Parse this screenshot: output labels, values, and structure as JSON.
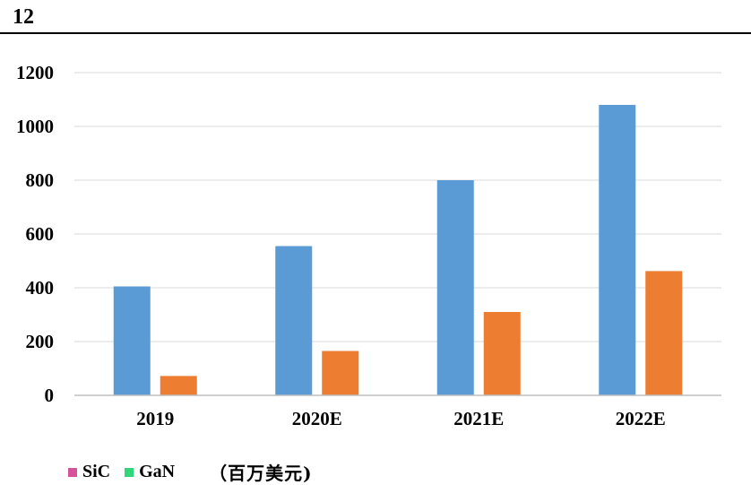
{
  "page": {
    "number": "12"
  },
  "legend": {
    "items": [
      {
        "label": "SiC",
        "color": "#d6529b"
      },
      {
        "label": "GaN",
        "color": "#2fd67a"
      }
    ],
    "unit": "（百万美元)"
  },
  "chart_data": {
    "type": "bar",
    "categories": [
      "2019",
      "2020E",
      "2021E",
      "2022E"
    ],
    "series": [
      {
        "values": [
          405,
          555,
          800,
          1080
        ],
        "color": "#5b9bd5"
      },
      {
        "values": [
          72,
          165,
          310,
          462
        ],
        "color": "#ed7d31"
      }
    ],
    "yticks": [
      "0",
      "200",
      "400",
      "600",
      "800",
      "1000",
      "1200"
    ],
    "ylim": [
      0,
      1200
    ],
    "grid": true
  }
}
